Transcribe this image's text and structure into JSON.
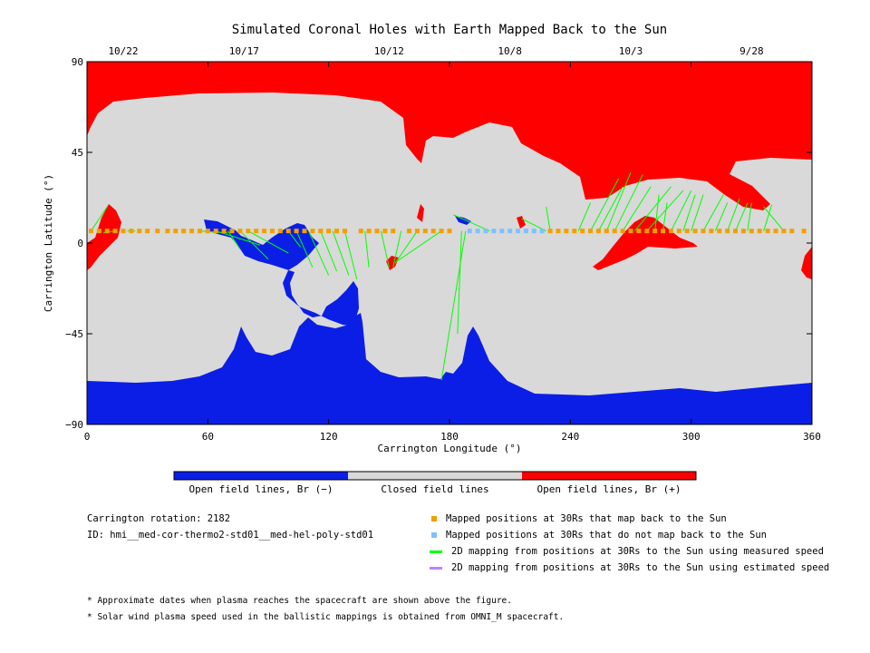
{
  "chart_data": {
    "type": "heatmap",
    "title": "Simulated Coronal Holes with Earth Mapped Back to the Sun",
    "xlabel": "Carrington Longitude (°)",
    "ylabel": "Carrington Latitude (°)",
    "xlim": [
      0,
      360
    ],
    "ylim": [
      -90,
      90
    ],
    "x_ticks": [
      "0",
      "60",
      "120",
      "180",
      "240",
      "300",
      "360"
    ],
    "y_ticks": [
      "90",
      "45",
      "0",
      "−45",
      "−90"
    ],
    "top_date_ticks": [
      {
        "label": "10/22",
        "lon": 18
      },
      {
        "label": "10/17",
        "lon": 78
      },
      {
        "label": "10/12",
        "lon": 150
      },
      {
        "label": "10/8",
        "lon": 210
      },
      {
        "label": "10/3",
        "lon": 270
      },
      {
        "label": "9/28",
        "lon": 330
      }
    ],
    "colorbar": [
      {
        "label": "Open field lines, Br (−)",
        "color": "#0b1ee6"
      },
      {
        "label": "Closed field lines",
        "color": "#d9d9d9"
      },
      {
        "label": "Open field lines, Br (+)",
        "color": "#ff0000"
      }
    ],
    "mapped_latitude": 6,
    "mapped_positions": [
      2,
      6,
      10,
      14,
      18,
      22,
      26,
      30,
      35,
      40,
      44,
      48,
      52,
      56,
      60,
      64,
      68,
      72,
      76,
      80,
      84,
      88,
      92,
      96,
      100,
      104,
      108,
      112,
      116,
      120,
      124,
      128,
      136,
      140,
      144,
      148,
      152,
      160,
      164,
      168,
      172,
      176,
      180,
      230,
      234,
      238,
      242,
      246,
      250,
      254,
      258,
      262,
      266,
      270,
      274,
      278,
      282,
      286,
      290,
      294,
      298,
      302,
      306,
      310,
      314,
      318,
      322,
      326,
      330,
      334,
      338,
      342,
      346,
      350,
      356
    ],
    "unmapped_positions": [
      190,
      194,
      198,
      202,
      206,
      210,
      214,
      218,
      222,
      226
    ],
    "measured_speed_mappings": [
      [
        2,
        6,
        10,
        18
      ],
      [
        14,
        6,
        8,
        5
      ],
      [
        24,
        6,
        20,
        6
      ],
      [
        56,
        6,
        70,
        5
      ],
      [
        64,
        6,
        86,
        -1
      ],
      [
        70,
        6,
        76,
        -3
      ],
      [
        76,
        6,
        90,
        -8
      ],
      [
        80,
        6,
        100,
        -5
      ],
      [
        100,
        6,
        106,
        -2
      ],
      [
        104,
        6,
        112,
        -12
      ],
      [
        110,
        6,
        120,
        -16
      ],
      [
        116,
        6,
        124,
        -14
      ],
      [
        122,
        6,
        130,
        -16
      ],
      [
        128,
        6,
        134,
        -18
      ],
      [
        138,
        6,
        140,
        -12
      ],
      [
        146,
        6,
        150,
        -12
      ],
      [
        156,
        6,
        152,
        -12
      ],
      [
        164,
        6,
        153,
        -10
      ],
      [
        176,
        6,
        154,
        -9
      ],
      [
        188,
        6,
        176,
        -68
      ],
      [
        186,
        6,
        184,
        -45
      ],
      [
        200,
        6,
        182,
        14
      ],
      [
        228,
        6,
        216,
        12
      ],
      [
        230,
        6,
        228,
        18
      ],
      [
        244,
        6,
        250,
        20
      ],
      [
        250,
        6,
        264,
        32
      ],
      [
        254,
        6,
        266,
        28
      ],
      [
        258,
        6,
        270,
        35
      ],
      [
        262,
        6,
        276,
        34
      ],
      [
        266,
        6,
        280,
        28
      ],
      [
        272,
        6,
        290,
        28
      ],
      [
        278,
        6,
        296,
        26
      ],
      [
        282,
        6,
        284,
        24
      ],
      [
        286,
        6,
        288,
        20
      ],
      [
        290,
        6,
        300,
        26
      ],
      [
        296,
        6,
        302,
        24
      ],
      [
        300,
        6,
        306,
        24
      ],
      [
        306,
        6,
        316,
        24
      ],
      [
        312,
        6,
        318,
        20
      ],
      [
        318,
        6,
        324,
        22
      ],
      [
        322,
        6,
        328,
        20
      ],
      [
        328,
        6,
        330,
        20
      ],
      [
        336,
        6,
        340,
        19
      ],
      [
        346,
        6,
        336,
        18
      ]
    ],
    "estimated_speed_mappings": []
  },
  "info": {
    "rotation": "Carrington rotation: 2182",
    "id": "ID: hmi__med-cor-thermo2-std01__med-hel-poly-std01"
  },
  "legend": [
    {
      "label": "Mapped positions at 30Rs that map back to the Sun",
      "color": "#f0a000",
      "kind": "square"
    },
    {
      "label": "Mapped positions at 30Rs that do not map back to the Sun",
      "color": "#80c0ff",
      "kind": "square"
    },
    {
      "label": "2D mapping from positions at 30Rs to the Sun using measured speed",
      "color": "#00ff00",
      "kind": "line"
    },
    {
      "label": "2D mapping from positions at 30Rs to the Sun using estimated speed",
      "color": "#c080ff",
      "kind": "line"
    }
  ],
  "footnotes": [
    "* Approximate dates when plasma reaches the spacecraft are shown above the figure.",
    "* Solar wind plasma speed used in the ballistic mappings is obtained from OMNI_M spacecraft."
  ],
  "colors": {
    "red": "#ff0000",
    "blue": "#0b1ee6",
    "gray": "#d9d9d9"
  }
}
